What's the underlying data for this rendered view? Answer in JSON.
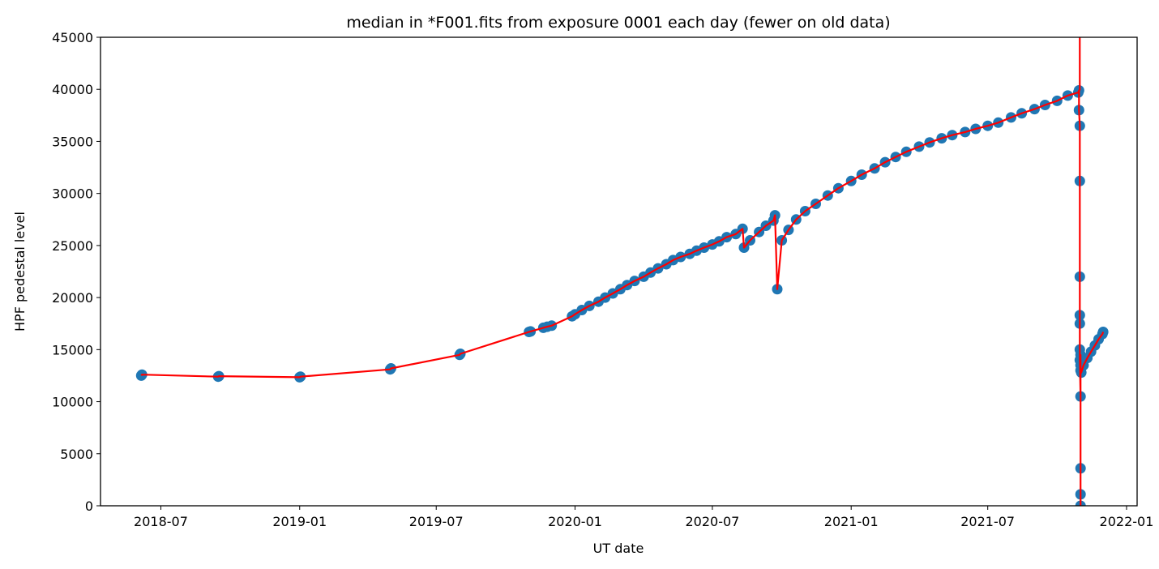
{
  "chart_data": {
    "type": "scatter",
    "title": "median in *F001.fits from exposure 0001 each day (fewer on old data)",
    "xlabel": "UT date",
    "ylabel": "HPF pedestal level",
    "ylim": [
      0,
      45000
    ],
    "xlim": [
      "2018-04-12",
      "2022-01-15"
    ],
    "grid": false,
    "legend": "none",
    "y_ticks": [
      0,
      5000,
      10000,
      15000,
      20000,
      25000,
      30000,
      35000,
      40000,
      45000
    ],
    "y_tick_labels": [
      "0",
      "5000",
      "10000",
      "15000",
      "20000",
      "25000",
      "30000",
      "35000",
      "40000",
      "45000"
    ],
    "x_ticks": [
      "2018-07-01",
      "2019-01-01",
      "2019-07-01",
      "2020-01-01",
      "2020-07-01",
      "2021-01-01",
      "2021-07-01",
      "2022-01-01"
    ],
    "x_tick_labels": [
      "2018-07",
      "2019-01",
      "2019-07",
      "2020-01",
      "2020-07",
      "2021-01",
      "2021-07",
      "2022-01"
    ],
    "colors": {
      "points": "#1f77b4",
      "line": "#ff0000"
    },
    "series": [
      {
        "x": [
          "2018-06-05",
          "2018-06-06",
          "2018-09-15",
          "2018-09-16",
          "2019-01-01",
          "2019-01-02",
          "2019-05-01",
          "2019-05-02",
          "2019-08-01",
          "2019-08-02",
          "2019-11-01",
          "2019-11-03",
          "2019-11-20",
          "2019-11-25",
          "2019-12-01",
          "2019-12-28",
          "2020-01-01",
          "2020-01-10",
          "2020-01-20",
          "2020-02-01",
          "2020-02-10",
          "2020-02-20",
          "2020-03-01",
          "2020-03-10",
          "2020-03-20",
          "2020-04-01",
          "2020-04-10",
          "2020-04-20",
          "2020-05-01",
          "2020-05-10",
          "2020-05-20",
          "2020-06-01",
          "2020-06-10",
          "2020-06-20",
          "2020-07-01",
          "2020-07-10",
          "2020-07-20",
          "2020-08-01",
          "2020-08-10",
          "2020-08-12",
          "2020-08-20",
          "2020-09-01",
          "2020-09-10",
          "2020-09-20",
          "2020-09-22",
          "2020-09-25",
          "2020-10-01",
          "2020-10-10",
          "2020-10-20",
          "2020-11-01",
          "2020-11-15",
          "2020-12-01",
          "2020-12-15",
          "2021-01-01",
          "2021-01-15",
          "2021-02-01",
          "2021-02-15",
          "2021-03-01",
          "2021-03-15",
          "2021-04-01",
          "2021-04-15",
          "2021-05-01",
          "2021-05-15",
          "2021-06-01",
          "2021-06-15",
          "2021-07-01",
          "2021-07-15",
          "2021-08-01",
          "2021-08-15",
          "2021-09-01",
          "2021-09-15",
          "2021-10-01",
          "2021-10-15",
          "2021-10-29",
          "2021-10-30",
          "2021-10-30",
          "2021-10-31",
          "2021-10-31",
          "2021-10-31",
          "2021-10-31",
          "2021-10-31",
          "2021-10-31",
          "2021-10-31",
          "2021-11-01",
          "2021-11-01",
          "2021-11-01",
          "2021-11-01",
          "2021-11-01",
          "2021-11-01",
          "2021-11-01",
          "2021-11-02",
          "2021-11-05",
          "2021-11-10",
          "2021-11-15",
          "2021-11-20",
          "2021-11-25",
          "2021-11-30",
          "2021-12-01"
        ],
        "y": [
          12500,
          12600,
          12400,
          12450,
          12350,
          12400,
          13100,
          13200,
          14500,
          14600,
          16700,
          16750,
          17100,
          17200,
          17300,
          18200,
          18400,
          18800,
          19200,
          19600,
          20000,
          20400,
          20800,
          21200,
          21600,
          22000,
          22400,
          22800,
          23200,
          23600,
          23900,
          24200,
          24500,
          24800,
          25100,
          25400,
          25800,
          26100,
          26600,
          24800,
          25500,
          26300,
          26900,
          27400,
          27900,
          20800,
          25500,
          26500,
          27500,
          28300,
          29000,
          29800,
          30500,
          31200,
          31800,
          32400,
          33000,
          33500,
          34000,
          34500,
          34900,
          35300,
          35600,
          35900,
          36200,
          36500,
          36800,
          37300,
          37700,
          38100,
          38500,
          38900,
          39400,
          39700,
          39900,
          38000,
          36500,
          31200,
          22000,
          18300,
          17500,
          15000,
          14000,
          10500,
          3600,
          1100,
          0,
          14500,
          13500,
          13000,
          12800,
          13500,
          14200,
          14800,
          15400,
          16000,
          16500,
          16700
        ]
      }
    ]
  }
}
